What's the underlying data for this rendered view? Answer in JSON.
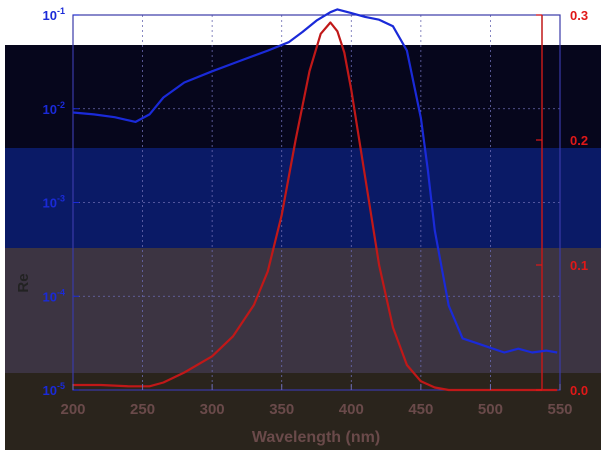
{
  "chart_data": {
    "type": "line",
    "title": "",
    "xlabel": "Wavelength (nm)",
    "ylabel_left": "Re",
    "ylabel_right": "",
    "xlim": [
      200,
      550
    ],
    "x_ticks": [
      200,
      250,
      300,
      350,
      400,
      450,
      500,
      550
    ],
    "y_left": {
      "scale": "log",
      "ylim_exponent": [
        -5,
        -1
      ],
      "tick_labels": [
        "10^-1",
        "10^-2",
        "10^-3",
        "10^-4",
        "10^-5"
      ],
      "color": "#1a2ad8"
    },
    "y_right": {
      "scale": "linear",
      "ylim": [
        0.0,
        0.3
      ],
      "tick_labels": [
        "0.3",
        "0.2",
        "0.1",
        "0.0"
      ],
      "color": "#e01818"
    },
    "grid": true,
    "series": [
      {
        "axis": "left",
        "color": "#1a2ad8",
        "x": [
          200,
          215,
          230,
          245,
          255,
          265,
          280,
          300,
          320,
          340,
          355,
          365,
          375,
          385,
          390,
          400,
          410,
          420,
          430,
          440,
          450,
          455,
          460,
          470,
          480,
          490,
          500,
          510,
          520,
          530,
          540,
          548
        ],
        "log10_y": [
          -2.04,
          -2.06,
          -2.09,
          -2.14,
          -2.06,
          -1.88,
          -1.72,
          -1.6,
          -1.49,
          -1.38,
          -1.29,
          -1.18,
          -1.06,
          -0.97,
          -0.94,
          -0.98,
          -1.02,
          -1.05,
          -1.12,
          -1.38,
          -2.1,
          -2.65,
          -3.3,
          -4.1,
          -4.45,
          -4.5,
          -4.55,
          -4.6,
          -4.56,
          -4.6,
          -4.58,
          -4.6
        ]
      },
      {
        "axis": "right",
        "color": "#c01818",
        "x": [
          200,
          220,
          240,
          255,
          265,
          280,
          300,
          315,
          330,
          340,
          350,
          360,
          370,
          378,
          385,
          390,
          395,
          400,
          410,
          420,
          430,
          440,
          450,
          460,
          470,
          480,
          500,
          520,
          548
        ],
        "y": [
          0.004,
          0.004,
          0.003,
          0.003,
          0.006,
          0.014,
          0.027,
          0.043,
          0.068,
          0.095,
          0.14,
          0.2,
          0.255,
          0.285,
          0.294,
          0.287,
          0.27,
          0.24,
          0.17,
          0.1,
          0.05,
          0.02,
          0.007,
          0.002,
          0.0,
          0.0,
          0.0,
          0.0,
          0.0
        ]
      }
    ]
  }
}
